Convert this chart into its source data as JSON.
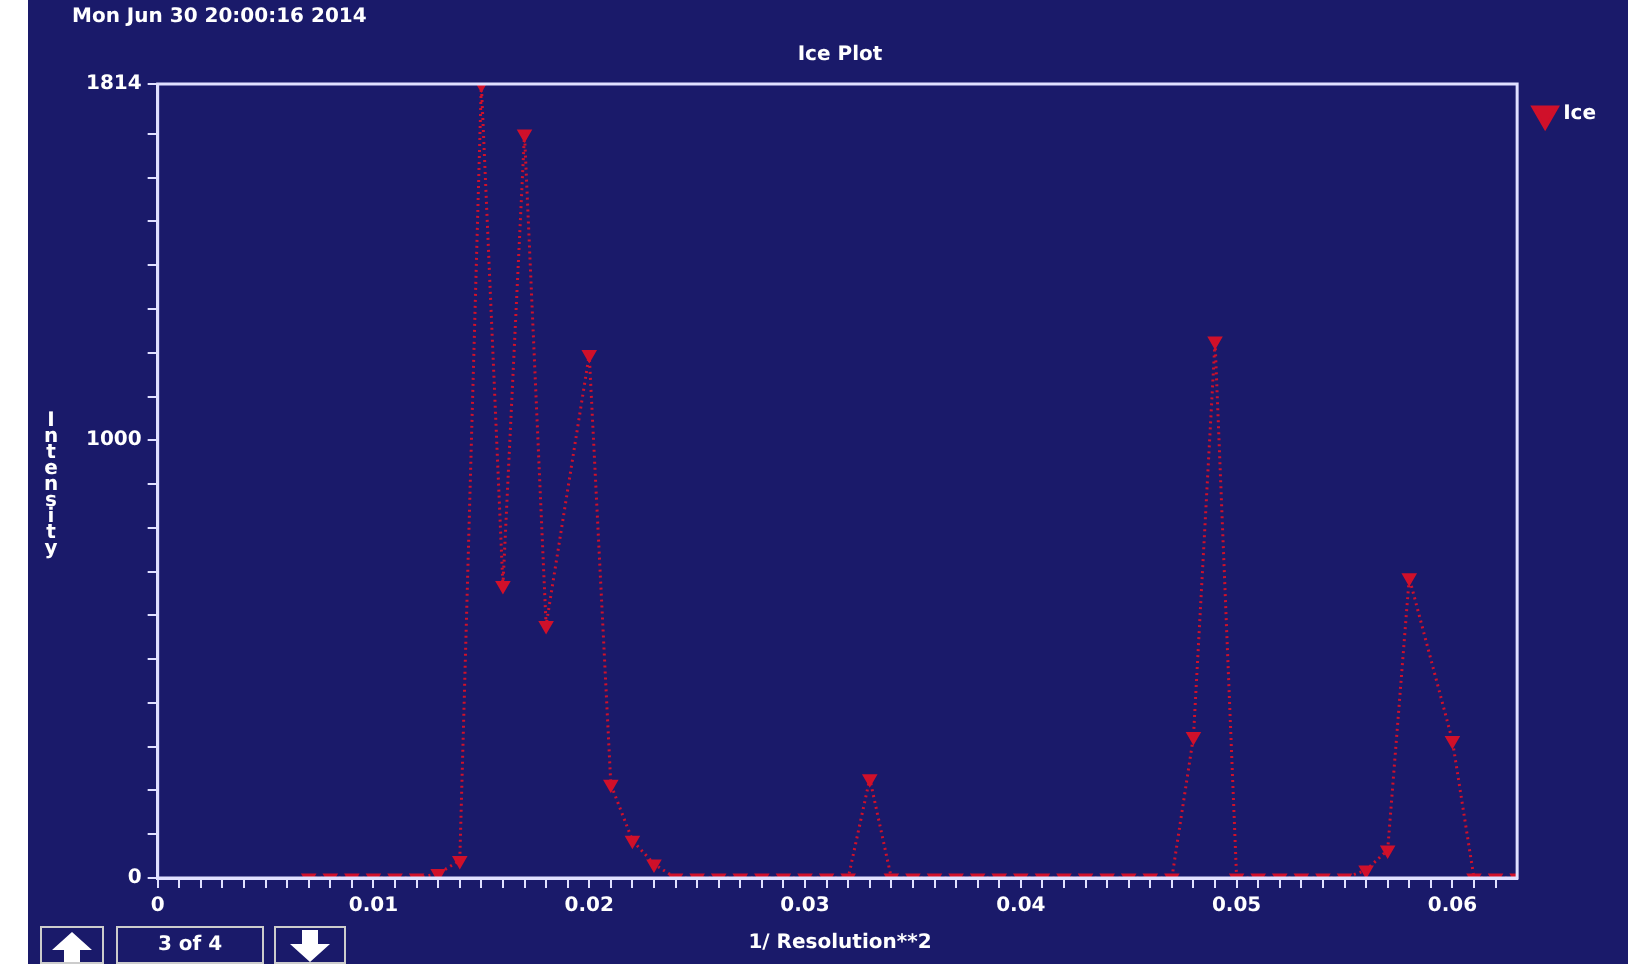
{
  "chart_data": {
    "type": "line",
    "title": "Ice Plot",
    "xlabel": "1/ Resolution**2",
    "ylabel": "Intensity",
    "annotations": [
      "Mon Jun 30 20:00:16 2014",
      "3 of 4"
    ],
    "series": [
      {
        "name": "Ice",
        "color": "#d0102a",
        "x": [
          0.007,
          0.008,
          0.009,
          0.01,
          0.011,
          0.012,
          0.013,
          0.014,
          0.015,
          0.016,
          0.017,
          0.018,
          0.02,
          0.021,
          0.022,
          0.023,
          0.024,
          0.025,
          0.026,
          0.027,
          0.028,
          0.029,
          0.03,
          0.031,
          0.032,
          0.033,
          0.034,
          0.035,
          0.036,
          0.037,
          0.038,
          0.039,
          0.04,
          0.041,
          0.042,
          0.043,
          0.044,
          0.045,
          0.046,
          0.047,
          0.048,
          0.049,
          0.05,
          0.051,
          0.052,
          0.053,
          0.054,
          0.055,
          0.056,
          0.057,
          0.058,
          0.06,
          0.061,
          0.062,
          0.063
        ],
        "values": [
          0,
          0,
          0,
          0,
          0,
          0,
          10,
          40,
          1814,
          668,
          1700,
          577,
          1196,
          214,
          86,
          32,
          0,
          0,
          0,
          0,
          0,
          0,
          0,
          0,
          0,
          227,
          0,
          0,
          0,
          0,
          0,
          0,
          0,
          0,
          0,
          0,
          0,
          0,
          0,
          0,
          323,
          1227,
          0,
          0,
          0,
          0,
          0,
          0,
          18,
          64,
          686,
          314,
          0,
          0,
          0
        ]
      }
    ],
    "xlim": [
      0,
      0.063
    ],
    "ylim": [
      0,
      1814
    ],
    "xticks": [
      0,
      {
        "value": 0.001,
        "label": null
      },
      {
        "value": 0.002,
        "label": null
      },
      {
        "value": 0.003,
        "label": null
      },
      {
        "value": 0.004,
        "label": null
      },
      {
        "value": 0.005,
        "label": null
      },
      {
        "value": 0.006,
        "label": null
      },
      {
        "value": 0.007,
        "label": null
      },
      {
        "value": 0.008,
        "label": null
      },
      {
        "value": 0.009,
        "label": null
      },
      0.01,
      {
        "value": 0.011,
        "label": null
      },
      {
        "value": 0.012,
        "label": null
      },
      {
        "value": 0.013,
        "label": null
      },
      {
        "value": 0.014,
        "label": null
      },
      {
        "value": 0.015,
        "label": null
      },
      {
        "value": 0.016,
        "label": null
      },
      {
        "value": 0.017,
        "label": null
      },
      {
        "value": 0.018,
        "label": null
      },
      {
        "value": 0.019,
        "label": null
      },
      0.02,
      {
        "value": 0.021,
        "label": null
      },
      {
        "value": 0.022,
        "label": null
      },
      {
        "value": 0.023,
        "label": null
      },
      {
        "value": 0.024,
        "label": null
      },
      {
        "value": 0.025,
        "label": null
      },
      {
        "value": 0.026,
        "label": null
      },
      {
        "value": 0.027,
        "label": null
      },
      {
        "value": 0.028,
        "label": null
      },
      {
        "value": 0.029,
        "label": null
      },
      0.03,
      {
        "value": 0.031,
        "label": null
      },
      {
        "value": 0.032,
        "label": null
      },
      {
        "value": 0.033,
        "label": null
      },
      {
        "value": 0.034,
        "label": null
      },
      {
        "value": 0.035,
        "label": null
      },
      {
        "value": 0.036,
        "label": null
      },
      {
        "value": 0.037,
        "label": null
      },
      {
        "value": 0.038,
        "label": null
      },
      {
        "value": 0.039,
        "label": null
      },
      0.04,
      {
        "value": 0.041,
        "label": null
      },
      {
        "value": 0.042,
        "label": null
      },
      {
        "value": 0.043,
        "label": null
      },
      {
        "value": 0.044,
        "label": null
      },
      {
        "value": 0.045,
        "label": null
      },
      {
        "value": 0.046,
        "label": null
      },
      {
        "value": 0.047,
        "label": null
      },
      {
        "value": 0.048,
        "label": null
      },
      {
        "value": 0.049,
        "label": null
      },
      0.05,
      {
        "value": 0.051,
        "label": null
      },
      {
        "value": 0.052,
        "label": null
      },
      {
        "value": 0.053,
        "label": null
      },
      {
        "value": 0.054,
        "label": null
      },
      {
        "value": 0.055,
        "label": null
      },
      {
        "value": 0.056,
        "label": null
      },
      {
        "value": 0.057,
        "label": null
      },
      {
        "value": 0.058,
        "label": null
      },
      {
        "value": 0.059,
        "label": null
      },
      0.06,
      {
        "value": 0.061,
        "label": null
      },
      {
        "value": 0.062,
        "label": null
      }
    ],
    "yticks": [
      0,
      {
        "value": 100,
        "label": null
      },
      {
        "value": 200,
        "label": null
      },
      {
        "value": 300,
        "label": null
      },
      {
        "value": 400,
        "label": null
      },
      {
        "value": 500,
        "label": null
      },
      {
        "value": 600,
        "label": null
      },
      {
        "value": 700,
        "label": null
      },
      {
        "value": 800,
        "label": null
      },
      {
        "value": 900,
        "label": null
      },
      1000,
      {
        "value": 1100,
        "label": null
      },
      {
        "value": 1200,
        "label": null
      },
      {
        "value": 1300,
        "label": null
      },
      {
        "value": 1400,
        "label": null
      },
      {
        "value": 1500,
        "label": null
      },
      {
        "value": 1600,
        "label": null
      },
      {
        "value": 1700,
        "label": null
      },
      1814
    ],
    "grid": false,
    "legend": "top right",
    "marker": "triangle",
    "line_style": "dotted"
  }
}
